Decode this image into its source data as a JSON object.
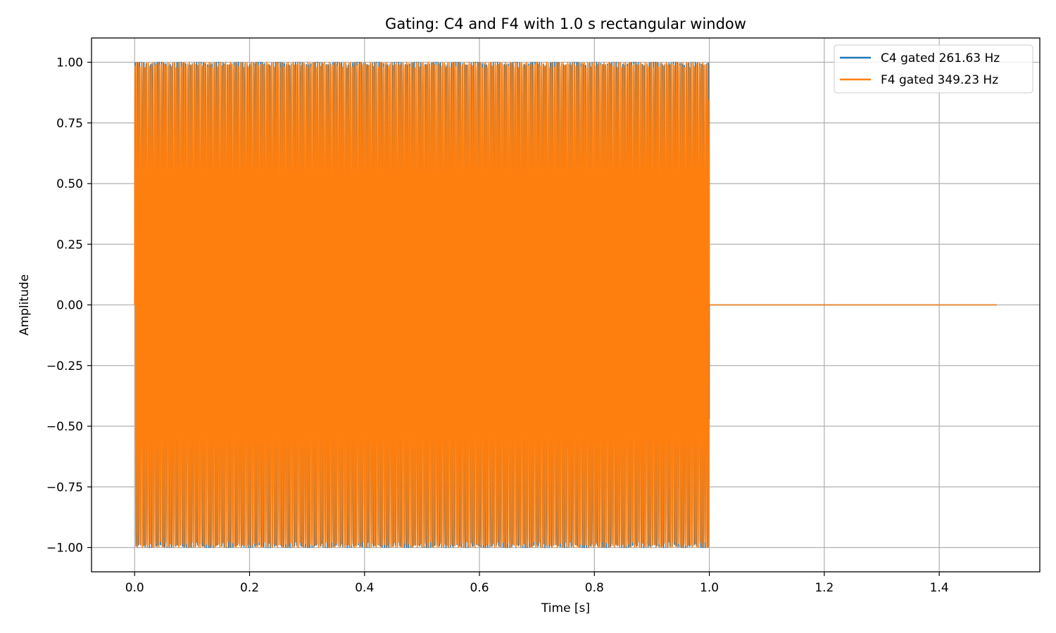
{
  "chart_data": {
    "type": "line",
    "title": "Gating: C4 and F4 with 1.0 s rectangular window",
    "xlabel": "Time [s]",
    "ylabel": "Amplitude",
    "xlim": [
      -0.075,
      1.575
    ],
    "ylim": [
      -1.1,
      1.1
    ],
    "x_ticks": [
      0.0,
      0.2,
      0.4,
      0.6,
      0.8,
      1.0,
      1.2,
      1.4
    ],
    "x_tick_labels": [
      "0.0",
      "0.2",
      "0.4",
      "0.6",
      "0.8",
      "1.0",
      "1.2",
      "1.4"
    ],
    "y_ticks": [
      1.0,
      0.75,
      0.5,
      0.25,
      0.0,
      -0.25,
      -0.5,
      -0.75,
      -1.0
    ],
    "y_tick_labels": [
      "1.00",
      "0.75",
      "0.50",
      "0.25",
      "0.00",
      "−0.25",
      "−0.50",
      "−0.75",
      "−1.00"
    ],
    "grid": true,
    "legend_position": "top-right",
    "series": [
      {
        "name": "C4 gated 261.63 Hz",
        "color": "#1f77b4",
        "frequency_hz": 261.63,
        "gate_start_s": 0.0,
        "gate_end_s": 1.0,
        "duration_s": 1.5,
        "amplitude": 1.0
      },
      {
        "name": "F4 gated 349.23 Hz",
        "color": "#ff7f0e",
        "frequency_hz": 349.23,
        "gate_start_s": 0.0,
        "gate_end_s": 1.0,
        "duration_s": 1.5,
        "amplitude": 1.0
      }
    ]
  }
}
